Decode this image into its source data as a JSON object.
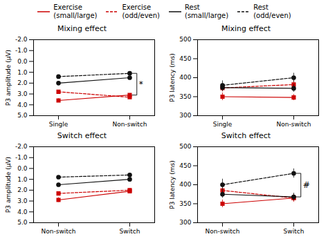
{
  "chart_data": [
    {
      "type": "line",
      "title": "Mixing effect",
      "y_label": "P3 amplitude (μV)",
      "categories": [
        "Single",
        "Non-switch"
      ],
      "ylim": [
        5.0,
        -2.0
      ],
      "yticks": [
        {
          "value": -2.0,
          "label": "-2.0"
        },
        {
          "value": -1.0,
          "label": "-1.0"
        },
        {
          "value": 0.0,
          "label": "0.0"
        },
        {
          "value": 1.0,
          "label": "1.0"
        },
        {
          "value": 2.0,
          "label": "2.0"
        },
        {
          "value": 3.0,
          "label": "3.0"
        },
        {
          "value": 4.0,
          "label": "4.0"
        },
        {
          "value": 5.0,
          "label": "5.0"
        }
      ],
      "grid": false,
      "series": [
        {
          "name": "Exercise\n(small/large)",
          "color": "#cc0000",
          "line_style": "solid",
          "marker": "square",
          "values": [
            3.6,
            3.1
          ],
          "errors": [
            0.18,
            0.12
          ]
        },
        {
          "name": "Exercise\n(odd/even)",
          "color": "#cc0000",
          "line_style": "dashed",
          "marker": "square",
          "values": [
            2.8,
            3.3
          ],
          "errors": [
            0.15,
            0.12
          ]
        },
        {
          "name": "Rest\n(small/large)",
          "color": "#111111",
          "line_style": "solid",
          "marker": "circle",
          "values": [
            2.0,
            1.5
          ],
          "errors": [
            0.15,
            0.12
          ]
        },
        {
          "name": "Rest\n(odd/even)",
          "color": "#111111",
          "line_style": "dashed",
          "marker": "circle",
          "values": [
            1.4,
            1.1
          ],
          "errors": [
            0.15,
            0.12
          ]
        }
      ],
      "annotations": [
        {
          "text": "*",
          "y1": 1.1,
          "y2": 3.1
        }
      ]
    },
    {
      "type": "line",
      "title": "Mixing effect",
      "y_label": "P3 latency (ms)",
      "categories": [
        "Single",
        "Non-switch"
      ],
      "ylim": [
        300,
        500
      ],
      "yticks": [
        300,
        350,
        400,
        450,
        500
      ],
      "grid": false,
      "series": [
        {
          "name": "Exercise\n(small/large)",
          "color": "#cc0000",
          "line_style": "solid",
          "marker": "square",
          "values": [
            350,
            348
          ],
          "errors": [
            10,
            8
          ]
        },
        {
          "name": "Exercise\n(odd/even)",
          "color": "#cc0000",
          "line_style": "dashed",
          "marker": "square",
          "values": [
            373,
            382
          ],
          "errors": [
            10,
            10
          ]
        },
        {
          "name": "Rest\n(small/large)",
          "color": "#111111",
          "line_style": "solid",
          "marker": "circle",
          "values": [
            374,
            372
          ],
          "errors": [
            10,
            10
          ]
        },
        {
          "name": "Rest\n(odd/even)",
          "color": "#111111",
          "line_style": "dashed",
          "marker": "circle",
          "values": [
            380,
            400
          ],
          "errors": [
            12,
            12
          ]
        }
      ]
    },
    {
      "type": "line",
      "title": "Switch effect",
      "y_label": "P3 amplitude (μV)",
      "categories": [
        "Non-switch",
        "Switch"
      ],
      "ylim": [
        5.0,
        -2.0
      ],
      "yticks": [
        {
          "value": -2.0,
          "label": "-2.0"
        },
        {
          "value": -1.0,
          "label": "-1.0"
        },
        {
          "value": 0.0,
          "label": "0.0"
        },
        {
          "value": 1.0,
          "label": "1.0"
        },
        {
          "value": 2.0,
          "label": "2.0"
        },
        {
          "value": 3.0,
          "label": "3.0"
        },
        {
          "value": 4.0,
          "label": "4.0"
        },
        {
          "value": 5.0,
          "label": "5.0"
        }
      ],
      "grid": false,
      "series": [
        {
          "name": "Exercise\n(small/large)",
          "color": "#cc0000",
          "line_style": "solid",
          "marker": "square",
          "values": [
            2.9,
            2.1
          ],
          "errors": [
            0.22,
            0.15
          ]
        },
        {
          "name": "Exercise\n(odd/even)",
          "color": "#cc0000",
          "line_style": "dashed",
          "marker": "square",
          "values": [
            2.3,
            2.0
          ],
          "errors": [
            0.15,
            0.15
          ]
        },
        {
          "name": "Rest\n(small/large)",
          "color": "#111111",
          "line_style": "solid",
          "marker": "circle",
          "values": [
            1.5,
            1.0
          ],
          "errors": [
            0.15,
            0.12
          ]
        },
        {
          "name": "Rest\n(odd/even)",
          "color": "#111111",
          "line_style": "dashed",
          "marker": "circle",
          "values": [
            0.8,
            0.6
          ],
          "errors": [
            0.12,
            0.12
          ]
        }
      ]
    },
    {
      "type": "line",
      "title": "Switch effect",
      "y_label": "P3 latency (ms)",
      "categories": [
        "Non-switch",
        "Switch"
      ],
      "ylim": [
        300,
        500
      ],
      "yticks": [
        300,
        350,
        400,
        450,
        500
      ],
      "grid": false,
      "series": [
        {
          "name": "Exercise\n(small/large)",
          "color": "#cc0000",
          "line_style": "solid",
          "marker": "square",
          "values": [
            350,
            365
          ],
          "errors": [
            10,
            10
          ]
        },
        {
          "name": "Exercise\n(odd/even)",
          "color": "#cc0000",
          "line_style": "dashed",
          "marker": "square",
          "values": [
            385,
            365
          ],
          "errors": [
            12,
            10
          ]
        },
        {
          "name": "Rest\n(small/large)",
          "color": "#111111",
          "line_style": "solid",
          "marker": "circle",
          "values": [
            375,
            368
          ],
          "errors": [
            10,
            10
          ]
        },
        {
          "name": "Rest\n(odd/even)",
          "color": "#111111",
          "line_style": "dashed",
          "marker": "circle",
          "values": [
            400,
            430
          ],
          "errors": [
            15,
            12
          ]
        }
      ],
      "annotations": [
        {
          "text": "#",
          "y1": 368,
          "y2": 430
        }
      ]
    }
  ]
}
